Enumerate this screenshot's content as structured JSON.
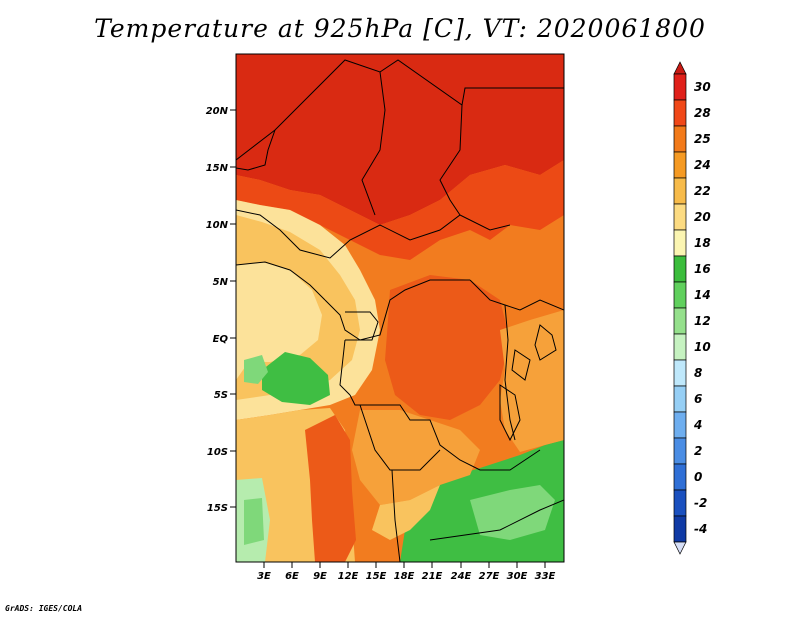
{
  "title": "Temperature at 925hPa [C], VT: 2020061800",
  "credit": "GrADS: IGES/COLA",
  "map": {
    "lat_labels": [
      "20N",
      "15N",
      "10N",
      "5N",
      "EQ",
      "5S",
      "10S",
      "15S"
    ],
    "lon_labels": [
      "3E",
      "6E",
      "9E",
      "12E",
      "15E",
      "18E",
      "21E",
      "24E",
      "27E",
      "30E",
      "33E"
    ]
  },
  "colorbar": {
    "labels": [
      "30",
      "28",
      "25",
      "24",
      "22",
      "20",
      "18",
      "16",
      "14",
      "12",
      "10",
      "8",
      "6",
      "4",
      "2",
      "0",
      "-2",
      "-4"
    ],
    "colors": [
      "#e0201a",
      "#f04818",
      "#f27a1a",
      "#f59a23",
      "#f7bb4a",
      "#fcdb82",
      "#fbf5b2",
      "#3bbd3c",
      "#60d05d",
      "#95e08c",
      "#c6f2c1",
      "#bfe8fb",
      "#96cff5",
      "#6eaeef",
      "#4a8de4",
      "#2f6fd6",
      "#1a50bf",
      "#0f3aa5",
      "#0b1c80"
    ],
    "top_triangle_color": "#c81a14",
    "bottom_triangle_color": "#d6dff7"
  },
  "palette": {
    "deep_red": "#d92a12",
    "red_orange": "#ec4a15",
    "orange": "#f27c1f",
    "light_orange": "#f6a13a",
    "peach": "#f9c35e",
    "pale_yellow": "#fce29a",
    "green": "#3fbe43",
    "light_green": "#7fd87a",
    "pale_green": "#b6ecae"
  }
}
